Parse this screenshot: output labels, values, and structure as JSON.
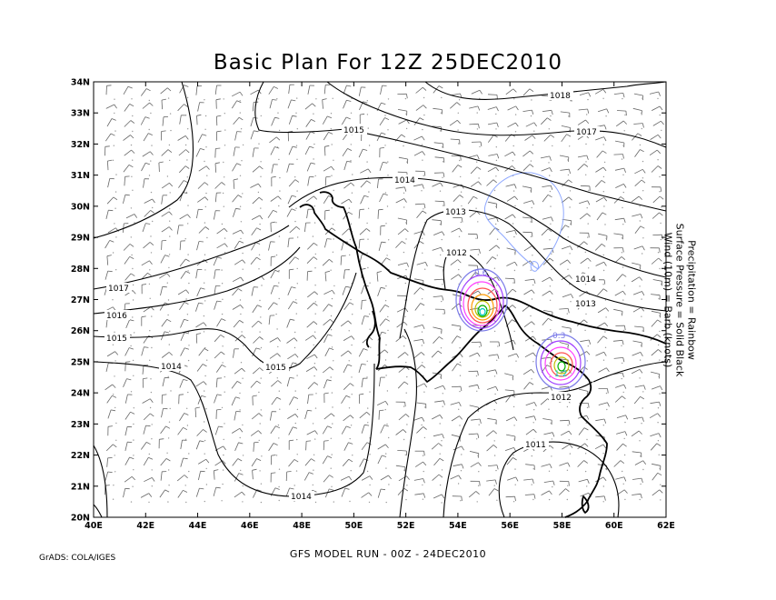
{
  "title": "Basic Plan For 12Z 25DEC2010",
  "legend_lines": [
    "Precipitation = Rainbow",
    "Surface Pressure = Solid Black",
    "Wind (10m) = Barb (knots)"
  ],
  "footer_run": "GFS MODEL RUN - 00Z - 24DEC2010",
  "footer_credit": "GrADS: COLA/IGES",
  "lat_labels": [
    "34N",
    "33N",
    "32N",
    "31N",
    "30N",
    "29N",
    "28N",
    "27N",
    "26N",
    "25N",
    "24N",
    "23N",
    "22N",
    "21N",
    "20N"
  ],
  "lon_labels": [
    "40E",
    "42E",
    "44E",
    "46E",
    "48E",
    "50E",
    "52E",
    "54E",
    "56E",
    "58E",
    "60E",
    "62E"
  ],
  "isobar_labels": [
    "1018",
    "1017",
    "1015",
    "1014",
    "1013",
    "1012",
    "1014",
    "1013",
    "1017",
    "1016",
    "1015",
    "1014",
    "1015",
    "1012",
    "1011",
    "1014"
  ],
  "precip_labels": [
    "0.6",
    "0.3",
    "1.2"
  ],
  "colors": {
    "isobar": "#000000",
    "coast": "#000000",
    "barb": "#555555",
    "precip_outer": "#7a7ae8",
    "precip_rainbow": [
      "#a040ff",
      "#ff40ff",
      "#ff5050",
      "#ff9900",
      "#c0c000",
      "#00b000",
      "#00c8c8",
      "#4060ff"
    ],
    "cloud_contour": "#8ea8ff"
  }
}
